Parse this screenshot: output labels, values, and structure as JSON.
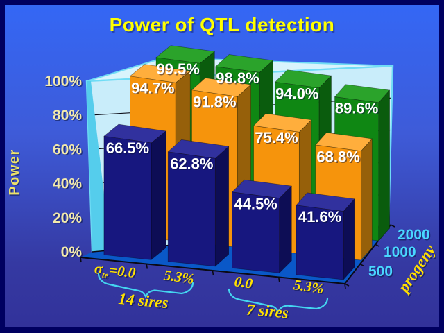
{
  "slide": {
    "title": "Power of QTL detection",
    "background_top": "#3467F5",
    "background_bottom": "#32329A",
    "border_color": "#000060",
    "title_color": "#FFFF00"
  },
  "chart_data": {
    "type": "bar",
    "projection": "3d",
    "title": "Power of QTL detection",
    "ylabel": "Power",
    "ylim": [
      0,
      100
    ],
    "grid": true,
    "y_ticks": [
      "0%",
      "20%",
      "40%",
      "60%",
      "80%",
      "100%"
    ],
    "depth_axis": {
      "title": "progeny",
      "ticks": [
        "500",
        "1000",
        "2000"
      ]
    },
    "categories": [
      "sigma_te=0.0 (14 sires)",
      "5.3% (14 sires)",
      "0.0 (7 sires)",
      "5.3% (7 sires)"
    ],
    "category_sublabels": [
      {
        "prefix": "σ",
        "sub": "te",
        "text": "=0.0"
      },
      {
        "text": "5.3%"
      },
      {
        "text": "0.0"
      },
      {
        "text": "5.3%"
      }
    ],
    "category_groups": [
      {
        "label": "14 sires",
        "span": [
          0,
          1
        ]
      },
      {
        "label": "7 sires",
        "span": [
          2,
          3
        ]
      }
    ],
    "series": [
      {
        "name": "500",
        "row": 0,
        "color_front": "#17177F",
        "color_top": "#31319E",
        "color_side": "#0D0D55",
        "values": [
          66.5,
          62.8,
          44.5,
          41.6
        ]
      },
      {
        "name": "1000",
        "row": 1,
        "color_front": "#F6940C",
        "color_top": "#FFAE3C",
        "color_side": "#96600A",
        "values": [
          94.7,
          91.8,
          75.4,
          68.8
        ]
      },
      {
        "name": "2000",
        "row": 2,
        "color_front": "#0F8713",
        "color_top": "#2BA32B",
        "color_side": "#0A5C0D",
        "values": [
          99.5,
          98.8,
          94.0,
          89.6
        ]
      }
    ],
    "data_label_format": "value%",
    "wall_color": "#C9EDFA",
    "roof_color": "#D8F4FC",
    "wedge_color": "#55CDEC",
    "floor_color": "#0A58C8",
    "edge_color": "#6FDCF5",
    "gridline_color": "#0A0A14",
    "bar_label_color": "#FFFFFF",
    "ytick_color": "#F2E9AC",
    "axis_title_color": "#EDE26A",
    "depth_tick_color": "#49D6FF",
    "category_label_color": "#FFE100",
    "brace_color": "#44D5F0"
  }
}
